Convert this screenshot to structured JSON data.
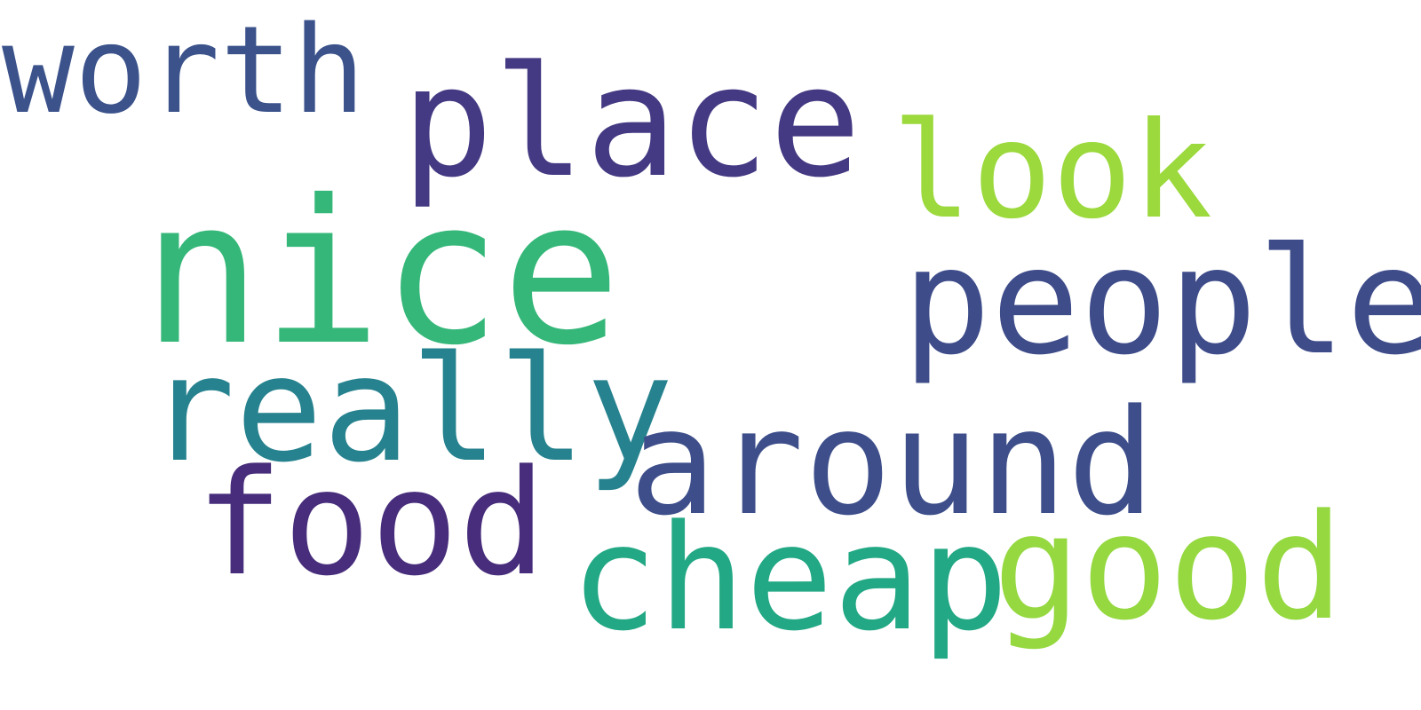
{
  "word_cloud": {
    "background": "#ffffff",
    "words": [
      {
        "key": "worth",
        "text": "worth",
        "color": "#3b528b"
      },
      {
        "key": "place",
        "text": "place",
        "color": "#443a83"
      },
      {
        "key": "look",
        "text": "look",
        "color": "#9bd93c"
      },
      {
        "key": "nice",
        "text": "nice",
        "color": "#35b779"
      },
      {
        "key": "people",
        "text": "people",
        "color": "#3e4c8a"
      },
      {
        "key": "really",
        "text": "really",
        "color": "#26828e"
      },
      {
        "key": "around",
        "text": "around",
        "color": "#3d4e8a"
      },
      {
        "key": "food",
        "text": "food",
        "color": "#472d7b"
      },
      {
        "key": "cheap",
        "text": "cheap",
        "color": "#22a884"
      },
      {
        "key": "good",
        "text": "good",
        "color": "#95d840"
      }
    ]
  }
}
